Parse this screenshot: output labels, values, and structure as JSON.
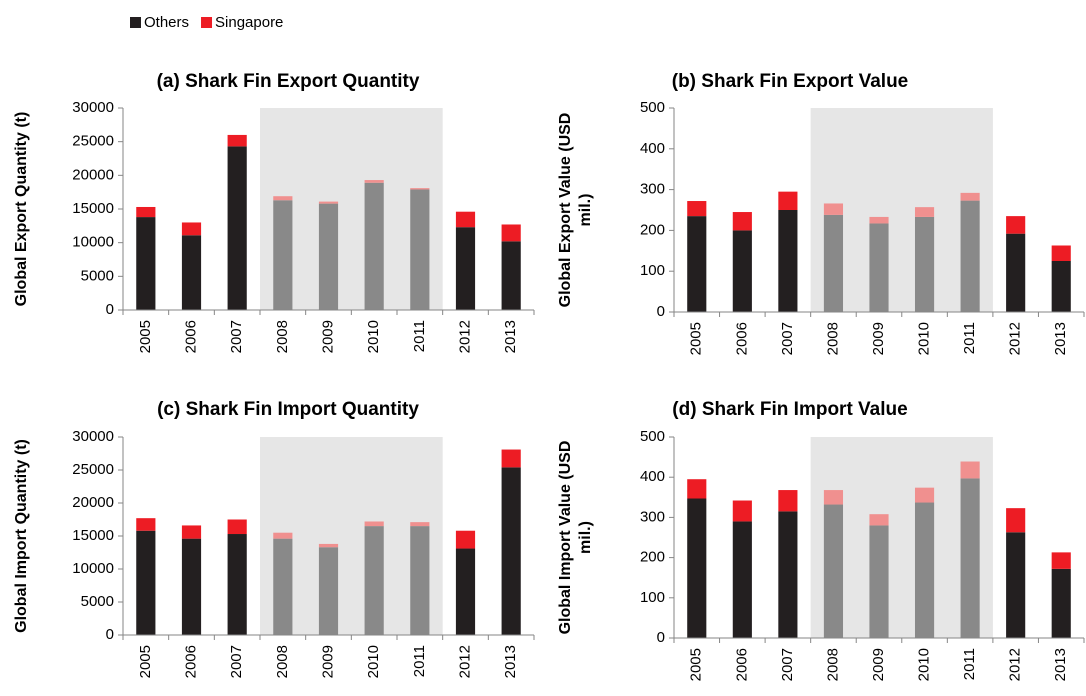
{
  "chart_data": [
    {
      "type": "stacked-bar",
      "title": "(a) Shark Fin Export Quantity",
      "ylabel": [
        "Global Export Quantity (t)"
      ],
      "categories": [
        "2005",
        "2006",
        "2007",
        "2008",
        "2009",
        "2010",
        "2011",
        "2012",
        "2013"
      ],
      "series": [
        {
          "name": "Others",
          "color": "#231f20",
          "values": [
            13800,
            11100,
            24300,
            16300,
            15800,
            18900,
            17900,
            12300,
            10200
          ]
        },
        {
          "name": "Singapore",
          "color": "#ed1c24",
          "values": [
            1500,
            1900,
            1700,
            600,
            300,
            400,
            200,
            2300,
            2500
          ]
        }
      ],
      "highlight": [
        "2008",
        "2011"
      ],
      "highlight_colors": [
        "#898989",
        "#f0908f"
      ],
      "shade_color": "#e6e6e6",
      "ylim": [
        0,
        30000
      ],
      "yticks": [
        0,
        5000,
        10000,
        15000,
        20000,
        25000,
        30000
      ]
    },
    {
      "type": "stacked-bar",
      "title": "(b) Shark Fin Export Value",
      "ylabel": [
        "Global Export Value (USD",
        "mil.)"
      ],
      "categories": [
        "2005",
        "2006",
        "2007",
        "2008",
        "2009",
        "2010",
        "2011",
        "2012",
        "2013"
      ],
      "series": [
        {
          "color": "#231f20",
          "values": [
            235,
            200,
            250,
            238,
            217,
            233,
            273,
            192,
            125
          ]
        },
        {
          "color": "#ed1c24",
          "values": [
            37,
            45,
            45,
            28,
            16,
            24,
            19,
            43,
            38
          ]
        }
      ],
      "highlight": [
        "2008",
        "2011"
      ],
      "highlight_colors": [
        "#898989",
        "#f0908f"
      ],
      "shade_color": "#e6e6e6",
      "ylim": [
        0,
        500
      ],
      "yticks": [
        0,
        100,
        200,
        300,
        400,
        500
      ]
    },
    {
      "type": "stacked-bar",
      "title": "(c) Shark Fin Import Quantity",
      "ylabel": [
        "Global Import Quantity (t)"
      ],
      "categories": [
        "2005",
        "2006",
        "2007",
        "2008",
        "2009",
        "2010",
        "2011",
        "2012",
        "2013"
      ],
      "series": [
        {
          "color": "#231f20",
          "values": [
            15800,
            14600,
            15300,
            14600,
            13300,
            16500,
            16500,
            13100,
            25400
          ]
        },
        {
          "color": "#ed1c24",
          "values": [
            1900,
            2000,
            2200,
            900,
            500,
            700,
            600,
            2700,
            2700
          ]
        }
      ],
      "highlight": [
        "2008",
        "2011"
      ],
      "highlight_colors": [
        "#898989",
        "#f0908f"
      ],
      "shade_color": "#e6e6e6",
      "ylim": [
        0,
        30000
      ],
      "yticks": [
        0,
        5000,
        10000,
        15000,
        20000,
        25000,
        30000
      ]
    },
    {
      "type": "stacked-bar",
      "title": "(d) Shark Fin Import Value",
      "ylabel": [
        "Global Import Value (USD",
        "mil.)"
      ],
      "categories": [
        "2005",
        "2006",
        "2007",
        "2008",
        "2009",
        "2010",
        "2011",
        "2012",
        "2013"
      ],
      "series": [
        {
          "color": "#231f20",
          "values": [
            347,
            290,
            315,
            332,
            280,
            337,
            397,
            263,
            172
          ]
        },
        {
          "color": "#ed1c24",
          "values": [
            48,
            52,
            53,
            36,
            28,
            37,
            42,
            60,
            41
          ]
        }
      ],
      "highlight": [
        "2008",
        "2011"
      ],
      "highlight_colors": [
        "#898989",
        "#f0908f"
      ],
      "shade_color": "#e6e6e6",
      "ylim": [
        0,
        500
      ],
      "yticks": [
        0,
        100,
        200,
        300,
        400,
        500
      ]
    }
  ]
}
